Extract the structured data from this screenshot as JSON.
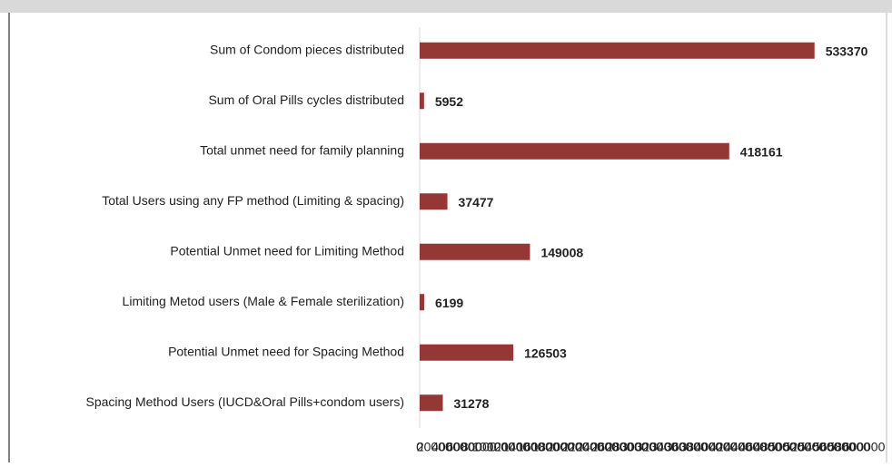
{
  "chart_data": {
    "type": "bar",
    "orientation": "horizontal",
    "categories": [
      "Sum of Condom pieces distributed",
      "Sum of Oral Pills cycles distributed",
      "Total unmet need for family planning",
      "Total Users using any FP method (Limiting & spacing)",
      "Potential Unmet need for Limiting Method",
      "Limiting Metod users (Male & Female sterilization)",
      "Potential Unmet need for Spacing  Method",
      "Spacing Method Users  (IUCD&Oral Pills+condom users)"
    ],
    "values": [
      533370,
      5952,
      418161,
      37477,
      149008,
      6199,
      126503,
      31278
    ],
    "color": "#953735",
    "xlim": [
      0,
      600000
    ],
    "xticks": [
      0,
      20000,
      40000,
      60000,
      80000,
      100000,
      120000,
      140000,
      160000,
      180000,
      200000,
      220000,
      240000,
      260000,
      280000,
      300000,
      320000,
      340000,
      360000,
      380000,
      400000,
      420000,
      440000,
      460000,
      480000,
      500000,
      520000,
      540000,
      560000,
      580000,
      600000
    ],
    "grid": false
  }
}
